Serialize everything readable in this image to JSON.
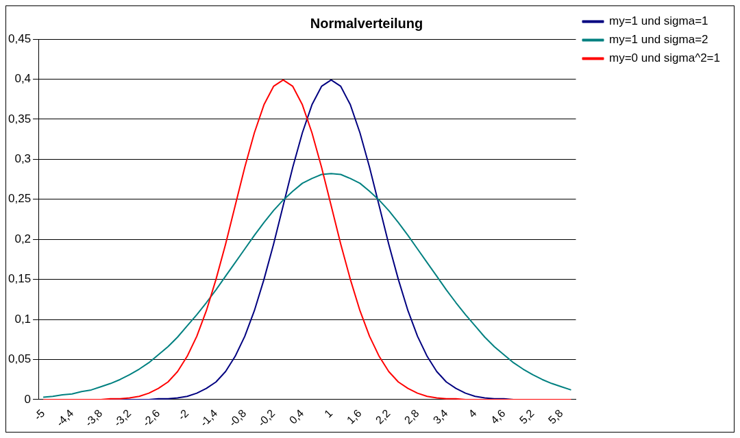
{
  "chart_data": {
    "type": "line",
    "title": "Normalverteilung",
    "categories": [
      "-5",
      null,
      null,
      "-4,4",
      null,
      null,
      "-3,8",
      null,
      null,
      "-3,2",
      null,
      null,
      "-2,6",
      null,
      null,
      "-2",
      null,
      null,
      "-1,4",
      null,
      null,
      "-0,8",
      null,
      null,
      "-0,2",
      null,
      null,
      "0,4",
      null,
      null,
      "1",
      null,
      null,
      "1,6",
      null,
      null,
      "2,2",
      null,
      null,
      "2,8",
      null,
      null,
      "3,4",
      null,
      null,
      "4",
      null,
      null,
      "4,6",
      null,
      null,
      "5,2",
      null,
      null,
      "5,8",
      null
    ],
    "series": [
      {
        "name": "my=1 und sigma=1",
        "color": "#000080",
        "values": [
          null,
          null,
          null,
          null,
          null,
          null,
          null,
          0,
          0,
          0,
          0,
          0,
          0.001,
          0.001,
          0.002,
          0.004,
          0.008,
          0.014,
          0.022,
          0.035,
          0.054,
          0.079,
          0.111,
          0.15,
          0.194,
          0.242,
          0.29,
          0.333,
          0.368,
          0.391,
          0.399,
          0.391,
          0.368,
          0.333,
          0.29,
          0.242,
          0.194,
          0.15,
          0.111,
          0.079,
          0.054,
          0.035,
          0.022,
          0.014,
          0.008,
          0.004,
          0.002,
          0.001,
          0.001,
          0,
          0,
          null,
          null,
          null,
          null,
          null
        ]
      },
      {
        "name": "my=1 und sigma=2",
        "color": "#008080",
        "values": [
          0.003,
          0.004,
          0.006,
          0.007,
          0.01,
          0.012,
          0.016,
          0.02,
          0.025,
          0.031,
          0.038,
          0.046,
          0.056,
          0.066,
          0.078,
          0.092,
          0.106,
          0.121,
          0.137,
          0.154,
          0.171,
          0.188,
          0.205,
          0.221,
          0.236,
          0.249,
          0.26,
          0.27,
          0.276,
          0.281,
          0.282,
          0.281,
          0.276,
          0.27,
          0.26,
          0.249,
          0.236,
          0.221,
          0.205,
          0.188,
          0.171,
          0.154,
          0.137,
          0.121,
          0.106,
          0.092,
          0.078,
          0.066,
          0.056,
          0.046,
          0.038,
          0.031,
          0.025,
          0.02,
          0.016,
          0.012
        ]
      },
      {
        "name": "my=0 und sigma^2=1",
        "color": "#ff0000",
        "values": [
          0,
          0,
          0,
          0,
          0,
          0,
          0,
          0.001,
          0.001,
          0.002,
          0.004,
          0.008,
          0.014,
          0.022,
          0.035,
          0.054,
          0.079,
          0.111,
          0.15,
          0.194,
          0.242,
          0.29,
          0.333,
          0.368,
          0.391,
          0.399,
          0.391,
          0.368,
          0.333,
          0.29,
          0.242,
          0.194,
          0.15,
          0.111,
          0.079,
          0.054,
          0.035,
          0.022,
          0.014,
          0.008,
          0.004,
          0.002,
          0.001,
          0.001,
          0,
          0,
          0,
          0,
          0,
          0,
          0,
          0,
          0,
          0,
          0,
          0
        ]
      }
    ],
    "ylim": [
      0,
      0.45
    ],
    "yticks": [
      0,
      {
        "value": 0.05,
        "label": "0,05"
      },
      {
        "value": 0.1,
        "label": "0,1"
      },
      {
        "value": 0.15,
        "label": "0,15"
      },
      {
        "value": 0.2,
        "label": "0,2"
      },
      {
        "value": 0.25,
        "label": "0,25"
      },
      {
        "value": 0.3,
        "label": "0,3"
      },
      {
        "value": 0.35,
        "label": "0,35"
      },
      {
        "value": 0.4,
        "label": "0,4"
      },
      {
        "value": 0.45,
        "label": "0,45"
      }
    ],
    "grid": "y",
    "legend": "top right",
    "marker": "none",
    "line_style": "solid"
  }
}
